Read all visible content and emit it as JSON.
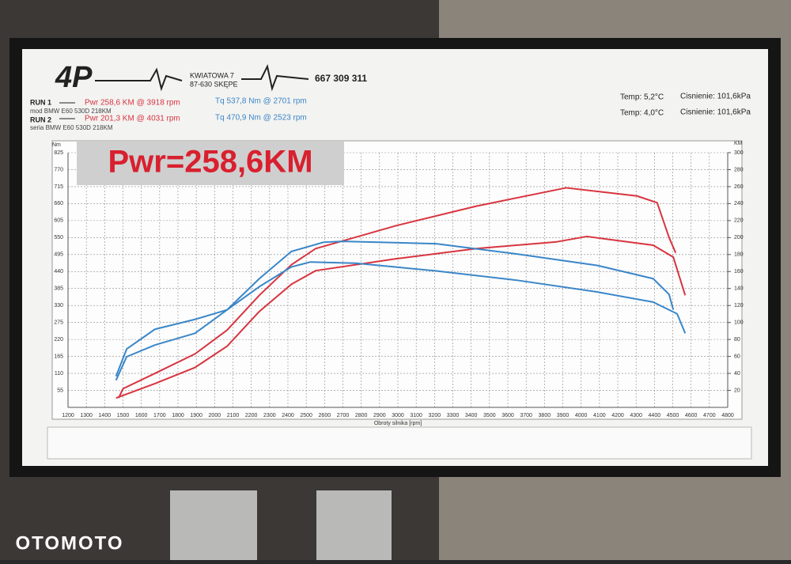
{
  "header": {
    "street": "KWIATOWA 7",
    "city": "87-630 SKĘPE",
    "phone": "667 309 311"
  },
  "runs": [
    {
      "label": "RUN 1",
      "car": "mod BMW E60 530D 218KM",
      "pwr": "Pwr 258,6 KM @ 3918 rpm",
      "tq": "Tq 537,8 Nm @ 2701 rpm",
      "temp": "Temp: 5,2°C",
      "pressure": "Cisnienie: 101,6kPa"
    },
    {
      "label": "RUN 2",
      "car": "seria BMW E60 530D 218KM",
      "pwr": "Pwr 201,3 KM @ 4031 rpm",
      "tq": "Tq 470,9 Nm @ 2523 rpm",
      "temp": "Temp: 4,0°C",
      "pressure": "Cisnienie: 101,6kPa"
    }
  ],
  "watermark": "OTOMOTO",
  "chart_data": {
    "type": "line",
    "title": "Pwr=258,6KM",
    "x_label": "Obroty silnika [rpm]",
    "y_label": "Nm",
    "y2_label": "KM",
    "xlim": [
      1200,
      4800
    ],
    "xticks": [
      1200,
      1300,
      1400,
      1500,
      1600,
      1700,
      1800,
      1900,
      2000,
      2100,
      2200,
      2300,
      2400,
      2500,
      2600,
      2700,
      2800,
      2900,
      3000,
      3100,
      3200,
      3300,
      3400,
      3500,
      3600,
      3700,
      3800,
      3900,
      4000,
      4100,
      4200,
      4300,
      4400,
      4500,
      4600,
      4700,
      4800
    ],
    "ylim": [
      0,
      825
    ],
    "yticks": [
      55,
      110,
      165,
      220,
      275,
      330,
      385,
      440,
      495,
      550,
      605,
      660,
      715,
      770,
      825
    ],
    "y2lim": [
      0,
      300
    ],
    "y2ticks": [
      20,
      40,
      60,
      80,
      100,
      120,
      140,
      160,
      180,
      200,
      220,
      240,
      260,
      280,
      300
    ],
    "grid": true,
    "series": [
      {
        "color": "#d8343f",
        "axis": "y2",
        "x": [
          1476,
          1500,
          1674,
          1893,
          2068,
          2244,
          2419,
          2551,
          2990,
          3428,
          3918,
          4305,
          4415,
          4480,
          4516
        ],
        "values": [
          11,
          22,
          40,
          63,
          91,
          132,
          168,
          187,
          214,
          237,
          258.6,
          249,
          241,
          200,
          182
        ]
      },
      {
        "color": "#d8343f",
        "axis": "y2",
        "x": [
          1462,
          1674,
          1893,
          2068,
          2244,
          2419,
          2551,
          2990,
          3428,
          3867,
          4031,
          4393,
          4503,
          4568
        ],
        "values": [
          11,
          28,
          47,
          72,
          113,
          145,
          161,
          175,
          187,
          195,
          201.3,
          191,
          177,
          132
        ]
      },
      {
        "color": "#3a86c8",
        "axis": "y",
        "x": [
          1462,
          1520,
          1674,
          1893,
          2068,
          2244,
          2419,
          2595,
          2701,
          3209,
          3647,
          4086,
          4393,
          4480,
          4503
        ],
        "values": [
          88,
          164,
          202,
          240,
          316,
          417,
          505,
          535,
          537.8,
          530,
          497,
          460,
          417,
          366,
          316
        ]
      },
      {
        "color": "#3a86c8",
        "axis": "y",
        "x": [
          1462,
          1520,
          1674,
          1893,
          2068,
          2244,
          2419,
          2523,
          2770,
          3209,
          3647,
          4086,
          4393,
          4524,
          4568
        ],
        "values": [
          101,
          189,
          253,
          285,
          316,
          391,
          455,
          470.9,
          467,
          442,
          412,
          374,
          341,
          303,
          240
        ]
      }
    ]
  }
}
